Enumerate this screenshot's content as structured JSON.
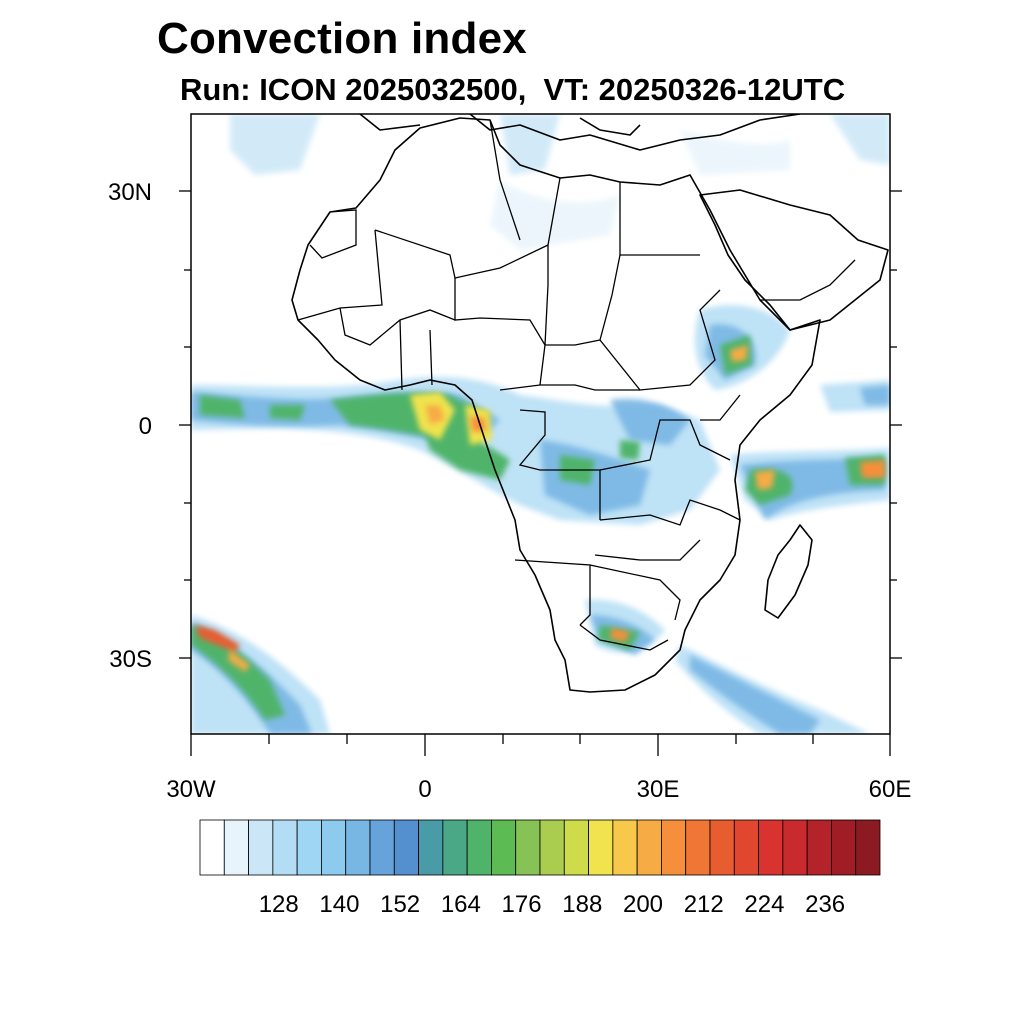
{
  "title": "Convection index",
  "subtitle": "Run: ICON 2025032500,  VT: 20250326-12UTC",
  "map": {
    "region": "Africa",
    "lon_range": [
      -30,
      60
    ],
    "lat_range": [
      -40,
      40
    ],
    "lat_labels": [
      "30N",
      "0",
      "30S"
    ],
    "lon_labels": [
      "30W",
      "0",
      "30E",
      "60E"
    ]
  },
  "colorbar": {
    "labels": [
      "128",
      "140",
      "152",
      "164",
      "176",
      "188",
      "200",
      "212",
      "224",
      "236"
    ],
    "colors": [
      "#ffffff",
      "#e8f4fb",
      "#cbe7f7",
      "#b3ddf5",
      "#9fd6f4",
      "#8ccaee",
      "#78b6e4",
      "#65a3da",
      "#548fcf",
      "#4a9ba8",
      "#4ba886",
      "#4fb46a",
      "#5dbb53",
      "#86c255",
      "#aacd4f",
      "#cfdc4a",
      "#f0e34d",
      "#f8c84a",
      "#f7ab44",
      "#f68f3b",
      "#f07636",
      "#e85d30",
      "#e0472e",
      "#d8332e",
      "#c92a2d",
      "#b5232a",
      "#a01d26",
      "#8c1a22"
    ]
  }
}
